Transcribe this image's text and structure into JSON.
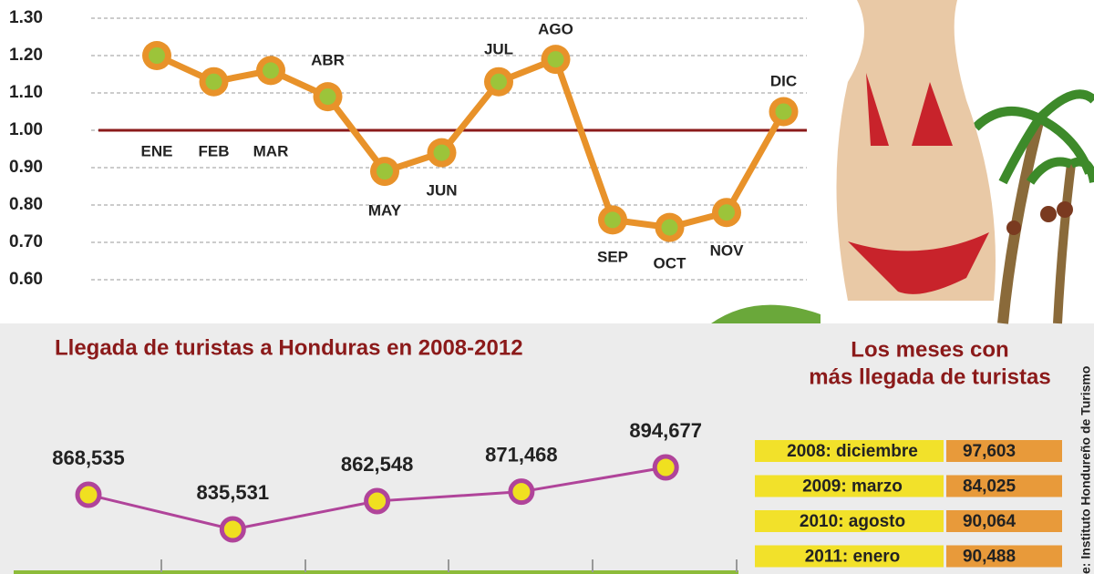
{
  "chart_data": [
    {
      "type": "line",
      "categories": [
        "ENE",
        "FEB",
        "MAR",
        "ABR",
        "MAY",
        "JUN",
        "JUL",
        "AGO",
        "SEP",
        "OCT",
        "NOV",
        "DIC"
      ],
      "values": [
        1.2,
        1.13,
        1.16,
        1.09,
        0.89,
        0.94,
        1.13,
        1.19,
        0.76,
        0.74,
        0.78,
        1.05
      ],
      "color": "#e8922a",
      "ylim": [
        0.55,
        1.31
      ],
      "yticks": [
        {
          "value": 0.6,
          "label": "0.60"
        },
        {
          "value": 0.7,
          "label": "0.70"
        },
        {
          "value": 0.8,
          "label": "0.80"
        },
        {
          "value": 0.9,
          "label": "0.90"
        },
        {
          "value": 1.0,
          "label": "1.00"
        },
        {
          "value": 1.1,
          "label": "1.10"
        },
        {
          "value": 1.2,
          "label": "1.20"
        },
        {
          "value": 1.3,
          "label": "1.30"
        }
      ],
      "reference_line": 1.0,
      "grid": true
    },
    {
      "type": "line",
      "title": "Llegada de turistas a Honduras en 2008-2012",
      "categories": [
        null,
        null,
        null,
        null,
        null
      ],
      "values": [
        868535,
        835531,
        862548,
        871468,
        894677
      ],
      "value_labels": [
        "868,535",
        "835,531",
        "862,548",
        "871,468",
        "894,677"
      ],
      "color": "#b0449a"
    }
  ],
  "table": {
    "title": [
      "Los meses con",
      "más llegada de turistas"
    ],
    "rows": [
      [
        "2008: diciembre",
        "97,603"
      ],
      [
        "2009: marzo",
        "84,025"
      ],
      [
        "2010: agosto",
        "90,064"
      ],
      [
        "2011: enero",
        "90,488"
      ]
    ]
  },
  "source": "e: Instituto Hondureño de Turismo"
}
